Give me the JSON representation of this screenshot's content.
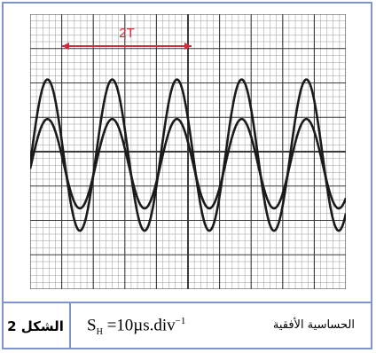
{
  "oscillogram": {
    "grid": {
      "cols": 10,
      "rows": 8
    },
    "period_marker_label": "2T",
    "marker_color": "#d12a3a"
  },
  "caption": {
    "figure_label": "الشكل 2",
    "sensitivity_value": "SH =10µs.div−1",
    "sensitivity_label": "الحساسية الأفقية"
  }
}
